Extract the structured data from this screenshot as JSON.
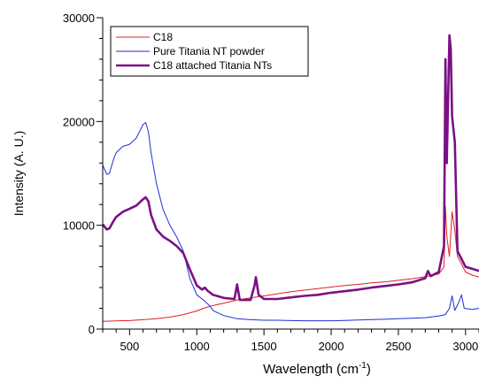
{
  "chart_data": {
    "type": "line",
    "xlabel": "Wavelength (cm",
    "xlabel_sup": "-1",
    "xlabel_tail": ")",
    "ylabel": "Intensity (A. U.)",
    "xlim": [
      300,
      3100
    ],
    "ylim": [
      0,
      30000
    ],
    "xticks": [
      500,
      1000,
      1500,
      2000,
      2500,
      3000
    ],
    "xtick_labels": [
      "500",
      "1000",
      "1500",
      "2000",
      "2500",
      "3000"
    ],
    "yticks": [
      0,
      10000,
      20000,
      30000
    ],
    "ytick_labels": [
      "0",
      "10000",
      "20000",
      "30000"
    ],
    "grid": false,
    "legend_position": "top-left",
    "series": [
      {
        "name": "C18",
        "color": "#e0201b",
        "width": 1,
        "points": [
          [
            300,
            750
          ],
          [
            400,
            780
          ],
          [
            500,
            820
          ],
          [
            600,
            900
          ],
          [
            700,
            1000
          ],
          [
            800,
            1150
          ],
          [
            900,
            1400
          ],
          [
            1000,
            1750
          ],
          [
            1050,
            2000
          ],
          [
            1100,
            2200
          ],
          [
            1150,
            2350
          ],
          [
            1200,
            2500
          ],
          [
            1250,
            2650
          ],
          [
            1300,
            2800
          ],
          [
            1400,
            3000
          ],
          [
            1500,
            3200
          ],
          [
            1600,
            3400
          ],
          [
            1700,
            3600
          ],
          [
            1800,
            3750
          ],
          [
            1900,
            3900
          ],
          [
            2000,
            4050
          ],
          [
            2100,
            4200
          ],
          [
            2200,
            4300
          ],
          [
            2300,
            4450
          ],
          [
            2400,
            4550
          ],
          [
            2500,
            4700
          ],
          [
            2600,
            4850
          ],
          [
            2700,
            5050
          ],
          [
            2800,
            5300
          ],
          [
            2840,
            6000
          ],
          [
            2850,
            11800
          ],
          [
            2860,
            9000
          ],
          [
            2880,
            7000
          ],
          [
            2900,
            11300
          ],
          [
            2920,
            9500
          ],
          [
            2940,
            7000
          ],
          [
            2960,
            6500
          ],
          [
            3000,
            5500
          ],
          [
            3050,
            5200
          ],
          [
            3100,
            5000
          ]
        ]
      },
      {
        "name": "Pure Titania NT powder",
        "color": "#1f2fd6",
        "width": 1,
        "points": [
          [
            300,
            15800
          ],
          [
            330,
            14900
          ],
          [
            350,
            15000
          ],
          [
            380,
            16300
          ],
          [
            400,
            17000
          ],
          [
            450,
            17600
          ],
          [
            500,
            17800
          ],
          [
            550,
            18400
          ],
          [
            600,
            19700
          ],
          [
            620,
            19900
          ],
          [
            640,
            19000
          ],
          [
            660,
            17000
          ],
          [
            700,
            14000
          ],
          [
            750,
            11500
          ],
          [
            800,
            10000
          ],
          [
            850,
            8900
          ],
          [
            900,
            7500
          ],
          [
            950,
            4800
          ],
          [
            1000,
            3300
          ],
          [
            1050,
            2800
          ],
          [
            1100,
            2200
          ],
          [
            1120,
            1800
          ],
          [
            1150,
            1600
          ],
          [
            1200,
            1300
          ],
          [
            1300,
            1000
          ],
          [
            1400,
            900
          ],
          [
            1500,
            850
          ],
          [
            1600,
            850
          ],
          [
            1700,
            820
          ],
          [
            1800,
            800
          ],
          [
            1900,
            800
          ],
          [
            2000,
            800
          ],
          [
            2100,
            830
          ],
          [
            2200,
            880
          ],
          [
            2300,
            920
          ],
          [
            2400,
            950
          ],
          [
            2500,
            1000
          ],
          [
            2600,
            1050
          ],
          [
            2700,
            1100
          ],
          [
            2800,
            1250
          ],
          [
            2850,
            1400
          ],
          [
            2880,
            2000
          ],
          [
            2900,
            3200
          ],
          [
            2920,
            1800
          ],
          [
            2950,
            2600
          ],
          [
            2970,
            3300
          ],
          [
            2990,
            2000
          ],
          [
            3050,
            1900
          ],
          [
            3100,
            2000
          ]
        ]
      },
      {
        "name": "C18 attached Titania NTs",
        "color": "#7a1183",
        "width": 2.6,
        "points": [
          [
            300,
            10100
          ],
          [
            330,
            9600
          ],
          [
            350,
            9700
          ],
          [
            380,
            10400
          ],
          [
            400,
            10800
          ],
          [
            450,
            11300
          ],
          [
            500,
            11600
          ],
          [
            550,
            11900
          ],
          [
            600,
            12500
          ],
          [
            620,
            12700
          ],
          [
            640,
            12300
          ],
          [
            660,
            11000
          ],
          [
            700,
            9600
          ],
          [
            750,
            8900
          ],
          [
            800,
            8500
          ],
          [
            850,
            8000
          ],
          [
            900,
            7300
          ],
          [
            950,
            5700
          ],
          [
            1000,
            4200
          ],
          [
            1040,
            3800
          ],
          [
            1060,
            4000
          ],
          [
            1080,
            3700
          ],
          [
            1100,
            3500
          ],
          [
            1120,
            3300
          ],
          [
            1150,
            3200
          ],
          [
            1200,
            3000
          ],
          [
            1280,
            2900
          ],
          [
            1300,
            4300
          ],
          [
            1320,
            2800
          ],
          [
            1400,
            2800
          ],
          [
            1430,
            4200
          ],
          [
            1440,
            5000
          ],
          [
            1460,
            3300
          ],
          [
            1500,
            2900
          ],
          [
            1600,
            2900
          ],
          [
            1700,
            3050
          ],
          [
            1800,
            3200
          ],
          [
            1900,
            3300
          ],
          [
            2000,
            3500
          ],
          [
            2100,
            3650
          ],
          [
            2200,
            3800
          ],
          [
            2300,
            4000
          ],
          [
            2400,
            4150
          ],
          [
            2500,
            4300
          ],
          [
            2600,
            4500
          ],
          [
            2700,
            4900
          ],
          [
            2720,
            5600
          ],
          [
            2740,
            5100
          ],
          [
            2800,
            5500
          ],
          [
            2840,
            8000
          ],
          [
            2850,
            26000
          ],
          [
            2860,
            16000
          ],
          [
            2870,
            22000
          ],
          [
            2880,
            28300
          ],
          [
            2890,
            27000
          ],
          [
            2900,
            20500
          ],
          [
            2920,
            18000
          ],
          [
            2940,
            7500
          ],
          [
            2960,
            7000
          ],
          [
            3000,
            6000
          ],
          [
            3050,
            5800
          ],
          [
            3100,
            5600
          ]
        ]
      }
    ]
  }
}
